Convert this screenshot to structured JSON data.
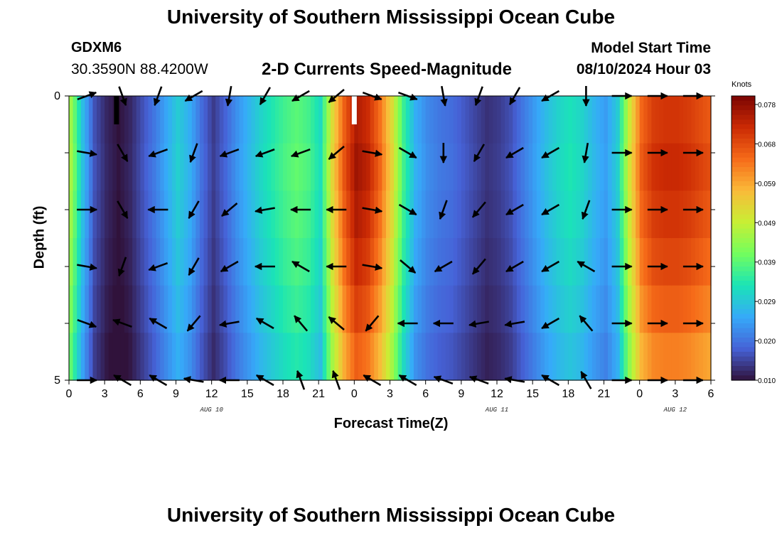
{
  "header": {
    "title": "University of Southern Mississippi Ocean Cube",
    "station": "GDXM6",
    "coords": "30.3590N  88.4200W",
    "subtitle": "2-D Currents Speed-Magnitude",
    "model_start_label": "Model Start Time",
    "model_start_value": "08/10/2024 Hour 03"
  },
  "footer": {
    "title": "University of Southern Mississippi Ocean Cube"
  },
  "chart_data": {
    "type": "heatmap",
    "xlabel": "Forecast Time(Z)",
    "ylabel": "Depth (ft)",
    "colorbar_units": "Knots",
    "x_hours_range": [
      0,
      54
    ],
    "y_depth_range": [
      0,
      5
    ],
    "x_tick_labels": [
      "0",
      "3",
      "6",
      "9",
      "12",
      "15",
      "18",
      "21",
      "0",
      "3",
      "6",
      "9",
      "12",
      "15",
      "18",
      "21",
      "0",
      "3",
      "6"
    ],
    "y_tick_labels": [
      "0",
      "5"
    ],
    "date_labels": [
      {
        "label": "AUG 10",
        "hour": 12
      },
      {
        "label": "AUG 11",
        "hour": 36
      },
      {
        "label": "AUG 12",
        "hour": 51
      }
    ],
    "colorbar_ticks": [
      "0.078",
      "0.068",
      "0.059",
      "0.049",
      "0.039",
      "0.029",
      "0.020",
      "0.010"
    ],
    "colorbar_range": [
      0.01,
      0.08
    ],
    "color_stops": [
      "#30123b",
      "#4662d7",
      "#36aaf9",
      "#1ae4b6",
      "#72fe5e",
      "#c8ef34",
      "#faba39",
      "#f66b19",
      "#cb2a04",
      "#7a0403"
    ],
    "speed_knots_by_hour": [
      {
        "h": 0,
        "v": 0.045
      },
      {
        "h": 1,
        "v": 0.028
      },
      {
        "h": 2,
        "v": 0.016
      },
      {
        "h": 3,
        "v": 0.012
      },
      {
        "h": 4,
        "v": 0.01
      },
      {
        "h": 5,
        "v": 0.012
      },
      {
        "h": 6,
        "v": 0.016
      },
      {
        "h": 7,
        "v": 0.02
      },
      {
        "h": 8,
        "v": 0.025
      },
      {
        "h": 9,
        "v": 0.03
      },
      {
        "h": 10,
        "v": 0.026
      },
      {
        "h": 11,
        "v": 0.019
      },
      {
        "h": 12,
        "v": 0.014
      },
      {
        "h": 13,
        "v": 0.018
      },
      {
        "h": 14,
        "v": 0.023
      },
      {
        "h": 15,
        "v": 0.027
      },
      {
        "h": 16,
        "v": 0.031
      },
      {
        "h": 17,
        "v": 0.034
      },
      {
        "h": 18,
        "v": 0.037
      },
      {
        "h": 19,
        "v": 0.039
      },
      {
        "h": 20,
        "v": 0.037
      },
      {
        "h": 21,
        "v": 0.032
      },
      {
        "h": 22,
        "v": 0.052
      },
      {
        "h": 23,
        "v": 0.066
      },
      {
        "h": 24,
        "v": 0.075
      },
      {
        "h": 25,
        "v": 0.072
      },
      {
        "h": 26,
        "v": 0.064
      },
      {
        "h": 27,
        "v": 0.052
      },
      {
        "h": 28,
        "v": 0.036
      },
      {
        "h": 29,
        "v": 0.026
      },
      {
        "h": 30,
        "v": 0.022
      },
      {
        "h": 31,
        "v": 0.02
      },
      {
        "h": 32,
        "v": 0.019
      },
      {
        "h": 33,
        "v": 0.017
      },
      {
        "h": 34,
        "v": 0.015
      },
      {
        "h": 35,
        "v": 0.013
      },
      {
        "h": 36,
        "v": 0.014
      },
      {
        "h": 37,
        "v": 0.016
      },
      {
        "h": 38,
        "v": 0.02
      },
      {
        "h": 39,
        "v": 0.024
      },
      {
        "h": 40,
        "v": 0.028
      },
      {
        "h": 41,
        "v": 0.031
      },
      {
        "h": 42,
        "v": 0.033
      },
      {
        "h": 43,
        "v": 0.031
      },
      {
        "h": 44,
        "v": 0.027
      },
      {
        "h": 45,
        "v": 0.024
      },
      {
        "h": 46,
        "v": 0.03
      },
      {
        "h": 47,
        "v": 0.05
      },
      {
        "h": 48,
        "v": 0.065
      },
      {
        "h": 49,
        "v": 0.07
      },
      {
        "h": 50,
        "v": 0.071
      },
      {
        "h": 51,
        "v": 0.071
      },
      {
        "h": 52,
        "v": 0.07
      },
      {
        "h": 53,
        "v": 0.068
      },
      {
        "h": 54,
        "v": 0.066
      }
    ],
    "depth_factors": [
      1.0,
      1.02,
      1.0,
      0.97,
      0.93,
      0.88
    ],
    "vector_hours": [
      1.5,
      4.5,
      7.5,
      10.5,
      13.5,
      16.5,
      19.5,
      22.5,
      25.5,
      28.5,
      31.5,
      34.5,
      37.5,
      40.5,
      43.5,
      46.5,
      49.5,
      52.5
    ],
    "vector_depths": [
      0,
      1,
      2,
      3,
      4,
      5
    ],
    "vectors_dir_deg": [
      [
        70,
        160,
        200,
        240,
        190,
        210,
        240,
        230,
        110,
        110,
        170,
        200,
        210,
        240,
        180,
        90,
        90,
        90
      ],
      [
        100,
        150,
        250,
        200,
        250,
        250,
        250,
        230,
        100,
        120,
        180,
        210,
        240,
        240,
        190,
        90,
        90,
        90
      ],
      [
        90,
        150,
        270,
        210,
        230,
        260,
        270,
        270,
        100,
        120,
        200,
        220,
        240,
        240,
        200,
        90,
        90,
        90
      ],
      [
        100,
        200,
        250,
        210,
        240,
        270,
        300,
        270,
        100,
        130,
        240,
        220,
        240,
        240,
        300,
        90,
        90,
        90
      ],
      [
        110,
        290,
        300,
        220,
        260,
        300,
        320,
        310,
        220,
        270,
        270,
        260,
        260,
        240,
        320,
        90,
        90,
        90
      ],
      [
        90,
        300,
        300,
        280,
        270,
        300,
        340,
        340,
        300,
        300,
        290,
        290,
        280,
        300,
        330,
        90,
        90,
        90
      ]
    ],
    "missing_markers": [
      {
        "hour": 4,
        "color": "#000000"
      },
      {
        "hour": 24,
        "color": "#ffffff"
      }
    ]
  }
}
